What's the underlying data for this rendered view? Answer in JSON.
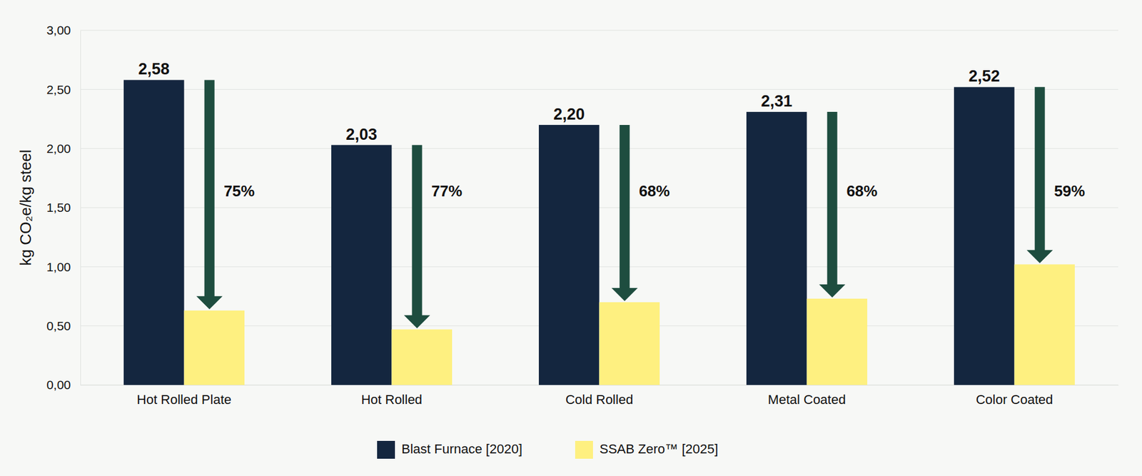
{
  "chart_data": {
    "type": "bar",
    "y_label": "kg CO₂e/kg steel",
    "categories": [
      "Hot Rolled Plate",
      "Hot Rolled",
      "Cold Rolled",
      "Metal Coated",
      "Color Coated"
    ],
    "series": [
      {
        "name": "Blast Furnace [2020]",
        "color": "#14263f",
        "data_labels": true,
        "values": [
          2.58,
          2.03,
          2.2,
          2.31,
          2.52
        ],
        "value_labels": [
          "2,58",
          "2,03",
          "2,20",
          "2,31",
          "2,52"
        ]
      },
      {
        "name": "SSAB Zero™ [2025]",
        "color": "#fef080",
        "values": [
          0.63,
          0.47,
          0.7,
          0.73,
          1.02
        ]
      }
    ],
    "reductions": [
      75,
      77,
      68,
      68,
      59
    ],
    "reduction_labels": [
      "75%",
      "77%",
      "68%",
      "68%",
      "59%"
    ],
    "reduction_color": "#1e4d3f",
    "ylim": [
      0,
      3
    ],
    "yticks": [
      {
        "value": 0,
        "label": "0,00"
      },
      {
        "value": 0.5,
        "label": "0,50"
      },
      {
        "value": 1,
        "label": "1,00"
      },
      {
        "value": 1.5,
        "label": "1,50"
      },
      {
        "value": 2,
        "label": "2,00"
      },
      {
        "value": 2.5,
        "label": "2,50"
      },
      {
        "value": 3,
        "label": "3,00"
      }
    ],
    "grid": true,
    "legend": "bottom"
  }
}
